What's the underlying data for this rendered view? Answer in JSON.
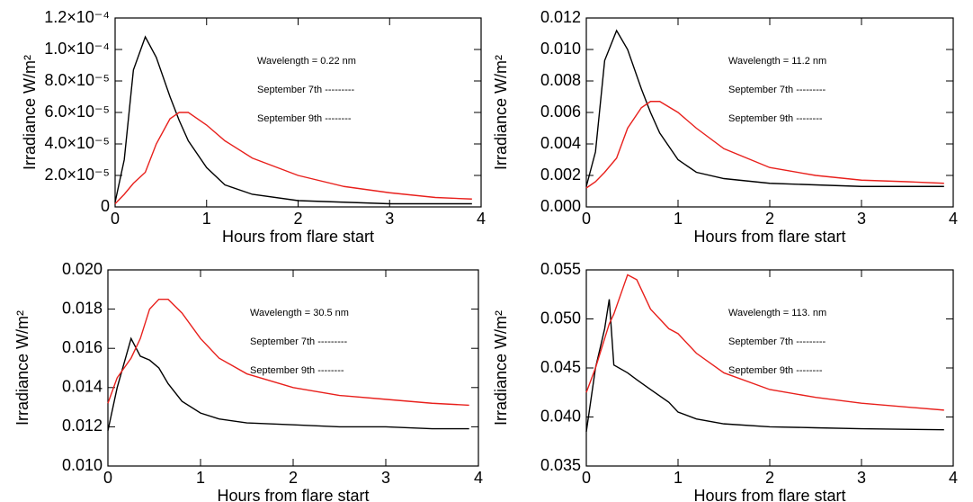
{
  "chart_data": [
    {
      "type": "line",
      "annotation": "Wavelength =  0.22 nm",
      "xlabel": "Hours from flare start",
      "ylabel": "Irradiance W/m²",
      "x": [
        0,
        0.1,
        0.2,
        0.33,
        0.45,
        0.6,
        0.7,
        0.8,
        1.0,
        1.2,
        1.5,
        2,
        2.5,
        3,
        3.5,
        3.9
      ],
      "series": [
        {
          "name": "September 7th ---------",
          "color": "#000000",
          "values": [
            3e-06,
            3e-05,
            8.7e-05,
            0.000108,
            9.5e-05,
            7e-05,
            5.5e-05,
            4.2e-05,
            2.5e-05,
            1.4e-05,
            8e-06,
            4e-06,
            3e-06,
            2e-06,
            2e-06,
            2e-06
          ]
        },
        {
          "name": "September 9th --------",
          "color": "#e8201c",
          "values": [
            2e-06,
            8e-06,
            1.5e-05,
            2.2e-05,
            4e-05,
            5.6e-05,
            6e-05,
            6e-05,
            5.2e-05,
            4.2e-05,
            3.1e-05,
            2e-05,
            1.3e-05,
            9e-06,
            6e-06,
            5e-06
          ]
        }
      ],
      "xlim": [
        0,
        4
      ],
      "xticks": [
        0,
        1,
        2,
        3,
        4
      ],
      "ylim": [
        0,
        0.00012
      ],
      "yticks": [
        0,
        {
          "value": 2e-05,
          "label": "2.0×10⁻⁵"
        },
        {
          "value": 4e-05,
          "label": "4.0×10⁻⁵"
        },
        {
          "value": 6e-05,
          "label": "6.0×10⁻⁵"
        },
        {
          "value": 8e-05,
          "label": "8.0×10⁻⁵"
        },
        {
          "value": 0.0001,
          "label": "1.0×10⁻⁴"
        },
        {
          "value": 0.00012,
          "label": "1.2×10⁻⁴"
        }
      ]
    },
    {
      "type": "line",
      "annotation": "Wavelength =  11.2 nm",
      "xlabel": "Hours from flare start",
      "ylabel": "Irradiance W/m²",
      "x": [
        0,
        0.1,
        0.2,
        0.33,
        0.45,
        0.6,
        0.7,
        0.8,
        1.0,
        1.2,
        1.5,
        2,
        2.5,
        3,
        3.5,
        3.9
      ],
      "series": [
        {
          "name": "September 7th ---------",
          "color": "#000000",
          "values": [
            0.0013,
            0.0035,
            0.0093,
            0.0112,
            0.01,
            0.0075,
            0.006,
            0.0047,
            0.003,
            0.0022,
            0.0018,
            0.0015,
            0.0014,
            0.0013,
            0.0013,
            0.0013
          ]
        },
        {
          "name": "September 9th --------",
          "color": "#e8201c",
          "values": [
            0.0012,
            0.0016,
            0.0022,
            0.0031,
            0.005,
            0.0063,
            0.0067,
            0.0067,
            0.006,
            0.005,
            0.0037,
            0.0025,
            0.002,
            0.0017,
            0.0016,
            0.0015
          ]
        }
      ],
      "xlim": [
        0,
        4
      ],
      "xticks": [
        0,
        1,
        2,
        3,
        4
      ],
      "ylim": [
        0,
        0.012
      ],
      "yticks": [
        {
          "value": 0,
          "label": "0.000"
        },
        {
          "value": 0.002,
          "label": "0.002"
        },
        {
          "value": 0.004,
          "label": "0.004"
        },
        {
          "value": 0.006,
          "label": "0.006"
        },
        {
          "value": 0.008,
          "label": "0.008"
        },
        {
          "value": 0.01,
          "label": "0.010"
        },
        {
          "value": 0.012,
          "label": "0.012"
        }
      ]
    },
    {
      "type": "line",
      "annotation": "Wavelength =  30.5 nm",
      "xlabel": "Hours from flare start",
      "ylabel": "Irradiance W/m²",
      "x": [
        0,
        0.1,
        0.25,
        0.35,
        0.45,
        0.55,
        0.65,
        0.8,
        1.0,
        1.2,
        1.5,
        2,
        2.5,
        3,
        3.5,
        3.9
      ],
      "series": [
        {
          "name": "September 7th ---------",
          "color": "#000000",
          "values": [
            0.0118,
            0.014,
            0.0165,
            0.0156,
            0.0154,
            0.015,
            0.0142,
            0.0133,
            0.0127,
            0.0124,
            0.0122,
            0.0121,
            0.012,
            0.012,
            0.0119,
            0.0119
          ]
        },
        {
          "name": "September 9th --------",
          "color": "#e8201c",
          "values": [
            0.0132,
            0.0145,
            0.0155,
            0.0165,
            0.018,
            0.0185,
            0.0185,
            0.0178,
            0.0165,
            0.0155,
            0.0147,
            0.014,
            0.0136,
            0.0134,
            0.0132,
            0.0131
          ]
        }
      ],
      "xlim": [
        0,
        4
      ],
      "xticks": [
        0,
        1,
        2,
        3,
        4
      ],
      "ylim": [
        0.01,
        0.02
      ],
      "yticks": [
        {
          "value": 0.01,
          "label": "0.010"
        },
        0.012,
        0.014,
        0.016,
        0.018,
        {
          "value": 0.02,
          "label": "0.020"
        }
      ]
    },
    {
      "type": "line",
      "annotation": "Wavelength =  113. nm",
      "xlabel": "Hours from flare start",
      "ylabel": "Irradiance W/m²",
      "x": [
        0,
        0.1,
        0.2,
        0.25,
        0.3,
        0.45,
        0.55,
        0.7,
        0.9,
        1.0,
        1.2,
        1.5,
        2,
        2.5,
        3,
        3.9
      ],
      "series": [
        {
          "name": "September 7th ---------",
          "color": "#000000",
          "values": [
            0.0385,
            0.045,
            0.049,
            0.052,
            0.0453,
            0.0445,
            0.0438,
            0.0428,
            0.0415,
            0.0405,
            0.0398,
            0.0393,
            0.039,
            0.0389,
            0.0388,
            0.0387
          ]
        },
        {
          "name": "September 9th --------",
          "color": "#e8201c",
          "values": [
            0.0425,
            0.045,
            0.048,
            0.0495,
            0.0505,
            0.0545,
            0.054,
            0.051,
            0.049,
            0.0485,
            0.0465,
            0.0445,
            0.0428,
            0.042,
            0.0414,
            0.0407
          ]
        }
      ],
      "xlim": [
        0,
        4
      ],
      "xticks": [
        0,
        1,
        2,
        3,
        4
      ],
      "ylim": [
        0.035,
        0.055
      ],
      "yticks": [
        {
          "value": 0.035,
          "label": "0.035"
        },
        {
          "value": 0.04,
          "label": "0.040"
        },
        0.045,
        {
          "value": 0.05,
          "label": "0.050"
        },
        0.055
      ]
    }
  ]
}
